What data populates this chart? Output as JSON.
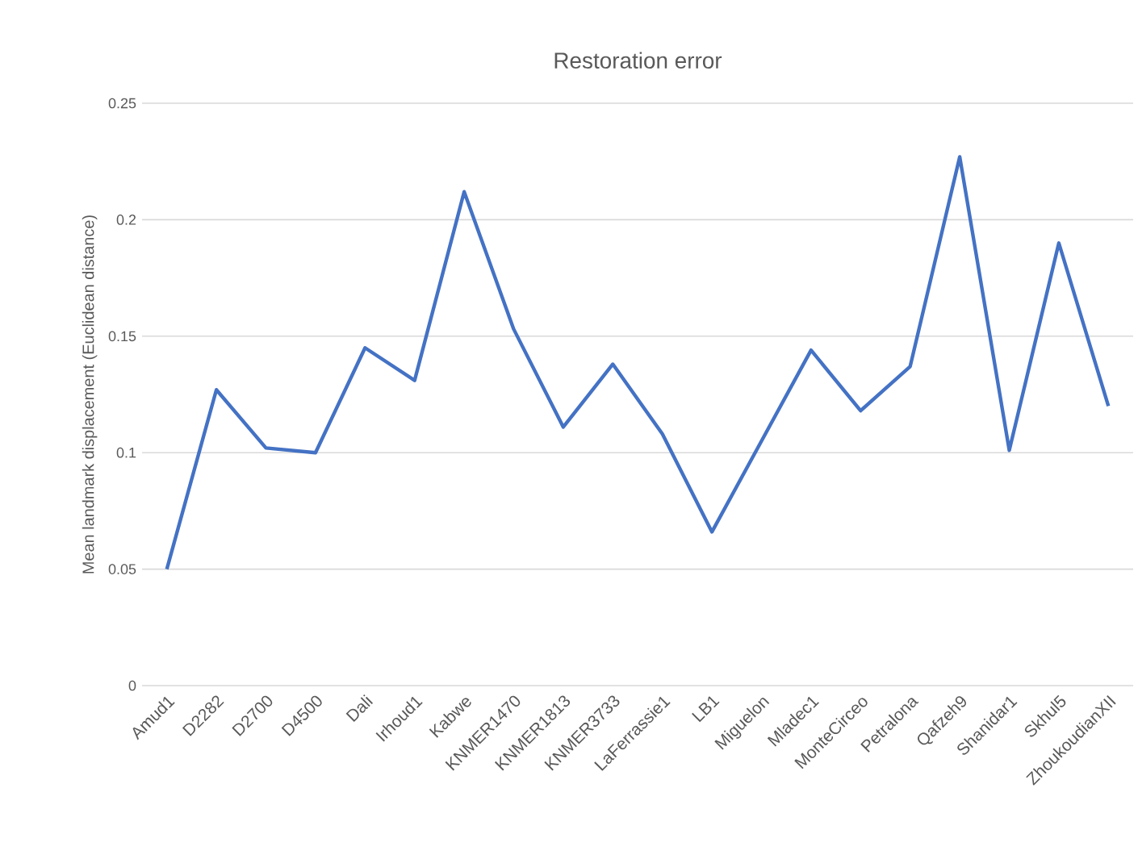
{
  "chart_data": {
    "type": "line",
    "title": "Restoration error",
    "ylabel": "Mean landmark displacement (Euclidean distance)",
    "categories": [
      "Amud1",
      "D2282",
      "D2700",
      "D4500",
      "Dali",
      "Irhoud1",
      "Kabwe",
      "KNMER1470",
      "KNMER1813",
      "KNMER3733",
      "LaFerrassie1",
      "LB1",
      "Miguelon",
      "Mladec1",
      "MonteCirceo",
      "Petralona",
      "Qafzeh9",
      "Shanidar1",
      "Skhul5",
      "ZhoukoudianXII"
    ],
    "values": [
      0.05,
      0.127,
      0.102,
      0.1,
      0.145,
      0.131,
      0.212,
      0.153,
      0.111,
      0.138,
      0.108,
      0.066,
      0.105,
      0.144,
      0.118,
      0.137,
      0.227,
      0.101,
      0.19,
      0.12
    ],
    "color": "#4472c4",
    "ylim": [
      0,
      0.25
    ],
    "yticks": [
      0,
      0.05,
      0.1,
      0.15,
      0.2,
      0.25
    ],
    "grid": "y"
  }
}
